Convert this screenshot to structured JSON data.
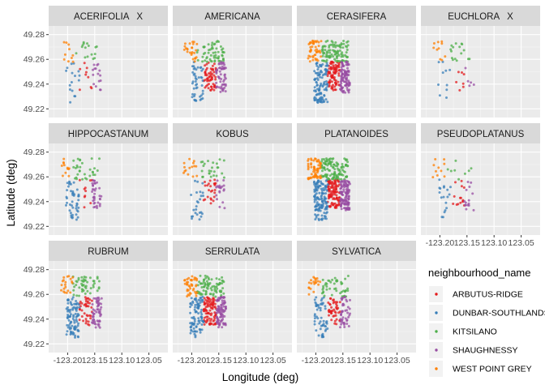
{
  "chart_data": {
    "type": "scatter",
    "facet_by": "species",
    "xlabel": "Longitude (deg)",
    "ylabel": "Latitude (deg)",
    "xlim": [
      -123.235,
      -123.015
    ],
    "ylim": [
      49.213,
      49.287
    ],
    "x_ticks": [
      -123.2,
      -123.15,
      -123.1,
      -123.05
    ],
    "x_tick_labels": [
      "-123.20",
      "-123.15",
      "-123.10",
      "-123.05"
    ],
    "x_tick_labels_shown": [
      "-123.20",
      "123.15",
      "123.10",
      "123.05"
    ],
    "y_ticks": [
      49.22,
      49.24,
      49.26,
      49.28
    ],
    "y_tick_labels": [
      "49.22",
      "49.24",
      "49.26",
      "49.28"
    ],
    "grid": true,
    "legend": {
      "title": "neighbourhood_name",
      "position": "right",
      "entries": [
        "ARBUTUS-RIDGE",
        "DUNBAR-SOUTHLANDS",
        "KITSILANO",
        "SHAUGHNESSY",
        "WEST POINT GREY"
      ]
    },
    "colors": {
      "ARBUTUS-RIDGE": "#e41a1c",
      "DUNBAR-SOUTHLANDS": "#377eb8",
      "KITSILANO": "#4daf4a",
      "SHAUGHNESSY": "#984ea3",
      "WEST POINT GREY": "#ff7f00"
    },
    "regions": {
      "WEST POINT GREY": {
        "lon": [
          -123.215,
          -123.19
        ],
        "lat": [
          49.258,
          49.275
        ]
      },
      "KITSILANO": {
        "lon": [
          -123.19,
          -123.14
        ],
        "lat": [
          49.258,
          49.275
        ]
      },
      "DUNBAR-SOUTHLANDS": {
        "lon": [
          -123.203,
          -123.178
        ],
        "lat": [
          49.225,
          49.258
        ]
      },
      "ARBUTUS-RIDGE": {
        "lon": [
          -123.178,
          -123.155
        ],
        "lat": [
          49.235,
          49.258
        ]
      },
      "SHAUGHNESSY": {
        "lon": [
          -123.155,
          -123.137
        ],
        "lat": [
          49.233,
          49.258
        ]
      }
    },
    "facets": [
      {
        "name": "ACERIFOLIA   X",
        "counts": {
          "ARBUTUS-RIDGE": 9,
          "DUNBAR-SOUTHLANDS": 16,
          "KITSILANO": 16,
          "SHAUGHNESSY": 16,
          "WEST POINT GREY": 10
        }
      },
      {
        "name": "AMERICANA",
        "counts": {
          "ARBUTUS-RIDGE": 60,
          "DUNBAR-SOUTHLANDS": 45,
          "KITSILANO": 60,
          "SHAUGHNESSY": 55,
          "WEST POINT GREY": 25
        }
      },
      {
        "name": "CERASIFERA",
        "counts": {
          "ARBUTUS-RIDGE": 90,
          "DUNBAR-SOUTHLANDS": 110,
          "KITSILANO": 100,
          "SHAUGHNESSY": 100,
          "WEST POINT GREY": 45
        }
      },
      {
        "name": "EUCHLORA   X",
        "counts": {
          "ARBUTUS-RIDGE": 7,
          "DUNBAR-SOUTHLANDS": 10,
          "KITSILANO": 16,
          "SHAUGHNESSY": 5,
          "WEST POINT GREY": 10
        }
      },
      {
        "name": "HIPPOCASTANUM",
        "counts": {
          "ARBUTUS-RIDGE": 10,
          "DUNBAR-SOUTHLANDS": 45,
          "KITSILANO": 30,
          "SHAUGHNESSY": 35,
          "WEST POINT GREY": 12
        }
      },
      {
        "name": "KOBUS",
        "counts": {
          "ARBUTUS-RIDGE": 25,
          "DUNBAR-SOUTHLANDS": 25,
          "KITSILANO": 25,
          "SHAUGHNESSY": 20,
          "WEST POINT GREY": 15
        }
      },
      {
        "name": "PLATANOIDES",
        "counts": {
          "ARBUTUS-RIDGE": 110,
          "DUNBAR-SOUTHLANDS": 130,
          "KITSILANO": 120,
          "SHAUGHNESSY": 120,
          "WEST POINT GREY": 60
        }
      },
      {
        "name": "PSEUDOPLATANUS",
        "counts": {
          "ARBUTUS-RIDGE": 15,
          "DUNBAR-SOUTHLANDS": 18,
          "KITSILANO": 8,
          "SHAUGHNESSY": 15,
          "WEST POINT GREY": 10
        }
      },
      {
        "name": "RUBRUM",
        "counts": {
          "ARBUTUS-RIDGE": 40,
          "DUNBAR-SOUTHLANDS": 90,
          "KITSILANO": 50,
          "SHAUGHNESSY": 55,
          "WEST POINT GREY": 20
        }
      },
      {
        "name": "SERRULATA",
        "counts": {
          "ARBUTUS-RIDGE": 90,
          "DUNBAR-SOUTHLANDS": 90,
          "KITSILANO": 80,
          "SHAUGHNESSY": 90,
          "WEST POINT GREY": 40
        }
      },
      {
        "name": "SYLVATICA",
        "counts": {
          "ARBUTUS-RIDGE": 45,
          "DUNBAR-SOUTHLANDS": 55,
          "KITSILANO": 45,
          "SHAUGHNESSY": 45,
          "WEST POINT GREY": 20
        }
      }
    ]
  }
}
